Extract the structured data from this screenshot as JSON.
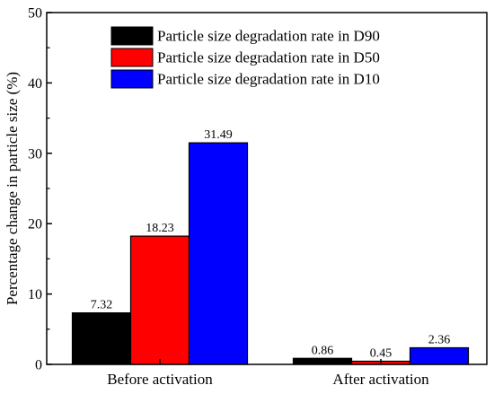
{
  "chart_data": {
    "type": "bar",
    "title": "",
    "xlabel": "",
    "ylabel": "Percentage change in particle size (%)",
    "ylim": [
      0,
      50
    ],
    "yticks": [
      0,
      10,
      20,
      30,
      40,
      50
    ],
    "categories": [
      "Before activation",
      "After activation"
    ],
    "series": [
      {
        "name": "Particle size degradation rate in D90",
        "color": "#000000",
        "values": [
          7.32,
          0.86
        ],
        "labels": [
          "7.32",
          "0.86"
        ]
      },
      {
        "name": "Particle size degradation rate in D50",
        "color": "#ff0000",
        "values": [
          18.23,
          0.45
        ],
        "labels": [
          "18.23",
          "0.45"
        ]
      },
      {
        "name": "Particle size degradation rate in D10",
        "color": "#0000ff",
        "values": [
          31.49,
          2.36
        ],
        "labels": [
          "31.49",
          "2.36"
        ]
      }
    ],
    "legend_position": "top-center",
    "grid": false
  }
}
